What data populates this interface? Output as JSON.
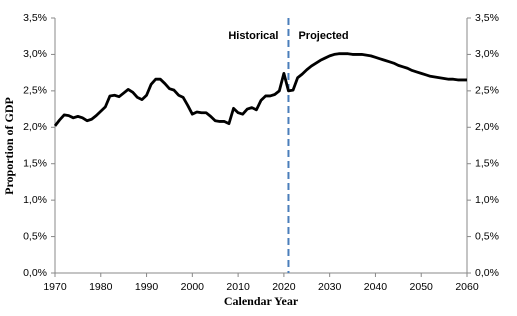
{
  "chart_data": {
    "type": "line",
    "x_label": "Calendar Year",
    "y_label": "Proportion of GDP",
    "x": [
      1970,
      1971,
      1972,
      1973,
      1974,
      1975,
      1976,
      1977,
      1978,
      1979,
      1980,
      1981,
      1982,
      1983,
      1984,
      1985,
      1986,
      1987,
      1988,
      1989,
      1990,
      1991,
      1992,
      1993,
      1994,
      1995,
      1996,
      1997,
      1998,
      1999,
      2000,
      2001,
      2002,
      2003,
      2004,
      2005,
      2006,
      2007,
      2008,
      2009,
      2010,
      2011,
      2012,
      2013,
      2014,
      2015,
      2016,
      2017,
      2018,
      2019,
      2020,
      2021,
      2022,
      2023,
      2024,
      2025,
      2026,
      2027,
      2028,
      2029,
      2030,
      2031,
      2032,
      2033,
      2034,
      2035,
      2036,
      2037,
      2038,
      2039,
      2040,
      2041,
      2042,
      2043,
      2044,
      2045,
      2046,
      2047,
      2048,
      2049,
      2050,
      2051,
      2052,
      2053,
      2054,
      2055,
      2056,
      2057,
      2058,
      2059,
      2060
    ],
    "series": [
      {
        "color": "#000000",
        "values": [
          2.02,
          2.1,
          2.17,
          2.16,
          2.13,
          2.15,
          2.13,
          2.09,
          2.11,
          2.16,
          2.22,
          2.28,
          2.43,
          2.44,
          2.42,
          2.47,
          2.52,
          2.48,
          2.41,
          2.38,
          2.44,
          2.59,
          2.66,
          2.66,
          2.6,
          2.53,
          2.51,
          2.44,
          2.41,
          2.3,
          2.18,
          2.21,
          2.2,
          2.2,
          2.15,
          2.09,
          2.08,
          2.08,
          2.05,
          2.26,
          2.2,
          2.18,
          2.25,
          2.27,
          2.24,
          2.37,
          2.43,
          2.43,
          2.45,
          2.5,
          2.74,
          2.5,
          2.51,
          2.68,
          2.73,
          2.79,
          2.84,
          2.88,
          2.92,
          2.95,
          2.98,
          3.0,
          3.01,
          3.01,
          3.01,
          3.0,
          3.0,
          3.0,
          2.99,
          2.98,
          2.96,
          2.94,
          2.92,
          2.9,
          2.88,
          2.85,
          2.83,
          2.81,
          2.78,
          2.76,
          2.74,
          2.72,
          2.7,
          2.69,
          2.68,
          2.67,
          2.66,
          2.66,
          2.65,
          2.65,
          2.65
        ]
      }
    ],
    "xlim": [
      1970,
      2060
    ],
    "xticks": [
      1970,
      1980,
      1990,
      2000,
      2010,
      2020,
      2030,
      2040,
      2050,
      2060
    ],
    "ylim": [
      0,
      3.5
    ],
    "yticks": [
      {
        "value": 0,
        "label": "0,0%"
      },
      {
        "value": 0.5,
        "label": "0,5%"
      },
      {
        "value": 1,
        "label": "1,0%"
      },
      {
        "value": 1.5,
        "label": "1,5%"
      },
      {
        "value": 2,
        "label": "2,0%"
      },
      {
        "value": 2.5,
        "label": "2,5%"
      },
      {
        "value": 3,
        "label": "3,0%"
      },
      {
        "value": 3.5,
        "label": "3,5%"
      }
    ],
    "divider": {
      "x": 2021,
      "color": "#4a7ebb",
      "left_label": "Historical",
      "right_label": "Projected"
    },
    "grid": false
  }
}
